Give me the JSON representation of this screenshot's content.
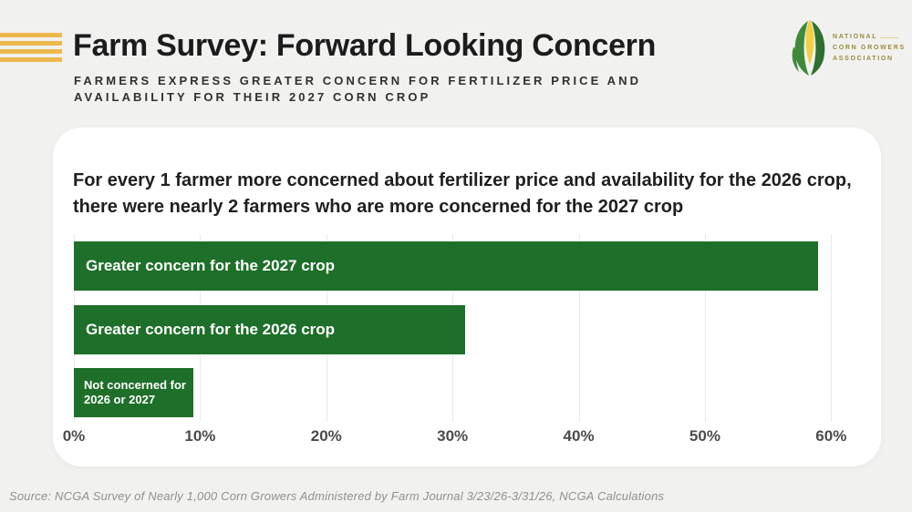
{
  "header": {
    "title": "Farm Survey: Forward Looking Concern",
    "subtitle_line1": "FARMERS EXPRESS GREATER CONCERN FOR FERTILIZER PRICE AND",
    "subtitle_line2": "AVAILABILITY FOR THEIR 2027 CORN CROP",
    "accent_stripes_color": "#edb94e"
  },
  "logo": {
    "line1": "NATIONAL",
    "line2": "CORN GROWERS",
    "line3": "ASSOCIATION",
    "text_color": "#998b3d",
    "rule_color": "#d8c565",
    "corn_cob_color": "#f2d044",
    "corn_husk_color": "#3e8a3a",
    "corn_husk_dark": "#2f7031"
  },
  "card": {
    "headline_line1": "For every 1 farmer more concerned about fertilizer price and availability for the 2026 crop,",
    "headline_line2": "there were nearly 2 farmers who are more concerned for the 2027 crop"
  },
  "chart_data": {
    "type": "bar",
    "orientation": "horizontal",
    "title": "",
    "xlabel": "",
    "ylabel": "",
    "categories": [
      "Greater concern for the 2027 crop",
      "Greater concern for the 2026 crop",
      "Not concerned for 2026 or 2027"
    ],
    "values": [
      59,
      31,
      9.5
    ],
    "xlim": [
      0,
      62
    ],
    "x_tick_values": [
      0,
      10,
      20,
      30,
      40,
      50,
      60
    ],
    "x_tick_labels": [
      "0%",
      "10%",
      "20%",
      "30%",
      "40%",
      "50%",
      "60%"
    ],
    "grid": true,
    "legend": "none",
    "bar_color": "#1e6f29",
    "bar_label_color": "#ffffff",
    "gridline_color": "#e9e9e9",
    "tick_label_color": "#4b4b4b"
  },
  "footer": {
    "source": "Source: NCGA Survey of Nearly 1,000 Corn Growers Administered by Farm Journal 3/23/26-3/31/26, NCGA Calculations"
  }
}
